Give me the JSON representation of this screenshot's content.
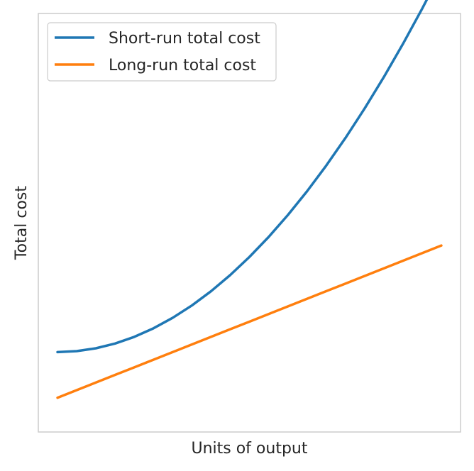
{
  "chart_data": {
    "type": "line",
    "title": "",
    "xlabel": "Units of output",
    "ylabel": "Total cost",
    "xticks_visible": false,
    "yticks_visible": false,
    "grid": false,
    "xlim": [
      -0.25,
      5.25
    ],
    "ylim": [
      -5,
      105
    ],
    "legend": {
      "placement": "top-left"
    },
    "x": [
      0,
      0.25,
      0.5,
      0.75,
      1,
      1.25,
      1.5,
      1.75,
      2,
      2.25,
      2.5,
      2.75,
      3,
      3.25,
      3.5,
      3.75,
      4,
      4.25,
      4.5,
      4.75,
      5
    ],
    "series": [
      {
        "name": "Short-run total cost",
        "color": "#1f77b4",
        "values": [
          16,
          16.25,
          17,
          18.25,
          20,
          22.25,
          25,
          28.25,
          32,
          36.25,
          41,
          46.25,
          52,
          58.25,
          65,
          72.25,
          80,
          88.25,
          97,
          106.25,
          116
        ]
      },
      {
        "name": "Long-run total cost",
        "color": "#ff7f0e",
        "values": [
          4,
          6,
          8,
          10,
          12,
          14,
          16,
          18,
          20,
          22,
          24,
          26,
          28,
          30,
          32,
          34,
          36,
          38,
          40,
          42,
          44
        ]
      }
    ]
  }
}
